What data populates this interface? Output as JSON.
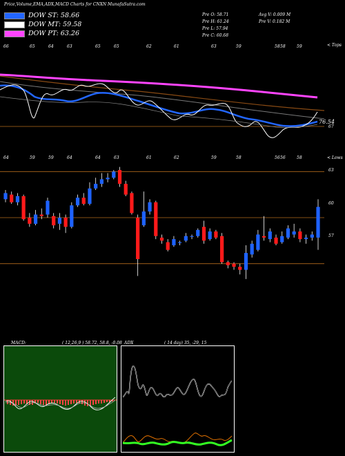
{
  "header": {
    "title": "Price,Volume,EMA,ADX,MACD Charts for CNXN",
    "site": "MunafaSutra.com",
    "legend": [
      {
        "label": "DOW ST: 58.66",
        "color": "#2266ff"
      },
      {
        "label": "DOW MT: 59.58",
        "color": "#ffffff"
      },
      {
        "label": "DOW PT: 63.26",
        "color": "#ff44ff"
      }
    ],
    "stats": {
      "prev": "Pre  O: 58.71",
      "high": "Pre  H: 61.24",
      "low": "Pre  L: 57.94",
      "close": "Pre  C: 60.68",
      "avgv": "Avg V: 0.009 M",
      "prev_v": "Pre  V: 0.182  M"
    }
  },
  "top_panel": {
    "label": "Price",
    "right_tag": "< Tops",
    "top_ticks": [
      "66",
      "65",
      "64",
      "63",
      "65",
      "65",
      "62",
      "61",
      "63",
      "59",
      "58",
      "58",
      "59"
    ],
    "price_labels": [
      "76.54",
      "67"
    ],
    "colors": {
      "dow_st": "#2266ff",
      "dow_pt": "#ff44ff",
      "guide": "#b36a1c"
    }
  },
  "candle_panel": {
    "right_tag": "< Lows",
    "top_ticks": [
      "64",
      "59",
      "59",
      "64",
      "64",
      "63",
      "61",
      "62",
      "59",
      "58",
      "56",
      "56",
      "58"
    ],
    "levels": [
      "63",
      "60",
      "57"
    ]
  },
  "macd": {
    "label": "MACD:",
    "params": "( 12,26,9 ) 58.72, 58.8, -0.08"
  },
  "adx": {
    "label": "ADX",
    "params": "( 14  day) 35,  -29,  15"
  },
  "chart_data": [
    {
      "type": "candlestick",
      "title": "Price,Volume,EMA,ADX,MACD Charts for CNXN",
      "ylabel": "Price",
      "ylim": [
        55.5,
        64.5
      ],
      "candles": [
        {
          "o": 61.2,
          "c": 61.6,
          "h": 61.8,
          "l": 61.0
        },
        {
          "o": 61.5,
          "c": 61.0,
          "h": 61.7,
          "l": 60.9
        },
        {
          "o": 61.0,
          "c": 61.4,
          "h": 61.6,
          "l": 60.8
        },
        {
          "o": 61.4,
          "c": 59.9,
          "h": 61.5,
          "l": 59.8
        },
        {
          "o": 60.0,
          "c": 59.6,
          "h": 60.3,
          "l": 59.4
        },
        {
          "o": 59.6,
          "c": 60.2,
          "h": 60.5,
          "l": 59.5
        },
        {
          "o": 60.2,
          "c": 60.1,
          "h": 60.6,
          "l": 59.9
        },
        {
          "o": 60.2,
          "c": 61.1,
          "h": 61.3,
          "l": 60.0
        },
        {
          "o": 60.1,
          "c": 59.5,
          "h": 60.3,
          "l": 59.3
        },
        {
          "o": 59.6,
          "c": 60.0,
          "h": 60.3,
          "l": 59.2
        },
        {
          "o": 60.0,
          "c": 59.4,
          "h": 60.2,
          "l": 59.0
        },
        {
          "o": 59.4,
          "c": 60.8,
          "h": 61.0,
          "l": 59.3
        },
        {
          "o": 60.8,
          "c": 61.3,
          "h": 61.5,
          "l": 60.7
        },
        {
          "o": 61.3,
          "c": 60.9,
          "h": 61.6,
          "l": 60.8
        },
        {
          "o": 60.9,
          "c": 61.9,
          "h": 62.3,
          "l": 60.8
        },
        {
          "o": 61.9,
          "c": 62.2,
          "h": 62.6,
          "l": 61.8
        },
        {
          "o": 62.2,
          "c": 62.5,
          "h": 62.9,
          "l": 62.0
        },
        {
          "o": 62.5,
          "c": 62.6,
          "h": 62.9,
          "l": 62.3
        },
        {
          "o": 62.6,
          "c": 63.0,
          "h": 63.1,
          "l": 62.5
        },
        {
          "o": 63.1,
          "c": 62.2,
          "h": 63.3,
          "l": 62.0
        },
        {
          "o": 62.2,
          "c": 61.5,
          "h": 62.4,
          "l": 61.4
        },
        {
          "o": 61.6,
          "c": 60.3,
          "h": 61.7,
          "l": 60.2
        },
        {
          "o": 60.0,
          "c": 57.3,
          "h": 60.2,
          "l": 56.2
        },
        {
          "o": 59.5,
          "c": 60.4,
          "h": 61.7,
          "l": 59.4
        },
        {
          "o": 60.4,
          "c": 61.0,
          "h": 61.2,
          "l": 60.2
        },
        {
          "o": 61.0,
          "c": 58.8,
          "h": 61.1,
          "l": 58.6
        },
        {
          "o": 58.7,
          "c": 58.5,
          "h": 58.9,
          "l": 58.3
        },
        {
          "o": 58.4,
          "c": 57.9,
          "h": 58.6,
          "l": 57.8
        },
        {
          "o": 58.2,
          "c": 58.6,
          "h": 58.8,
          "l": 58.1
        },
        {
          "o": 58.4,
          "c": 58.4,
          "h": 58.5,
          "l": 58.2
        },
        {
          "o": 58.5,
          "c": 58.8,
          "h": 59.0,
          "l": 58.4
        },
        {
          "o": 58.8,
          "c": 58.8,
          "h": 58.9,
          "l": 58.6
        },
        {
          "o": 58.8,
          "c": 59.2,
          "h": 59.3,
          "l": 58.7
        },
        {
          "o": 59.4,
          "c": 58.5,
          "h": 59.8,
          "l": 58.3
        },
        {
          "o": 58.6,
          "c": 59.1,
          "h": 59.3,
          "l": 58.5
        },
        {
          "o": 59.1,
          "c": 58.7,
          "h": 59.2,
          "l": 58.6
        },
        {
          "o": 58.8,
          "c": 57.1,
          "h": 59.0,
          "l": 57.0
        },
        {
          "o": 57.1,
          "c": 56.9,
          "h": 57.2,
          "l": 56.7
        },
        {
          "o": 57.0,
          "c": 56.8,
          "h": 57.1,
          "l": 56.6
        },
        {
          "o": 56.8,
          "c": 56.6,
          "h": 57.0,
          "l": 56.3
        },
        {
          "o": 56.6,
          "c": 57.7,
          "h": 58.2,
          "l": 56.0
        },
        {
          "o": 57.6,
          "c": 58.3,
          "h": 58.5,
          "l": 57.4
        },
        {
          "o": 57.9,
          "c": 58.9,
          "h": 59.2,
          "l": 57.8
        },
        {
          "o": 58.8,
          "c": 58.7,
          "h": 60.1,
          "l": 58.5
        },
        {
          "o": 58.6,
          "c": 59.1,
          "h": 59.3,
          "l": 58.4
        },
        {
          "o": 58.7,
          "c": 58.3,
          "h": 58.9,
          "l": 58.2
        },
        {
          "o": 58.4,
          "c": 58.8,
          "h": 59.1,
          "l": 58.3
        },
        {
          "o": 58.7,
          "c": 59.3,
          "h": 59.5,
          "l": 58.6
        },
        {
          "o": 58.9,
          "c": 59.1,
          "h": 59.6,
          "l": 58.7
        },
        {
          "o": 59.1,
          "c": 58.6,
          "h": 59.3,
          "l": 58.4
        },
        {
          "o": 58.6,
          "c": 58.7,
          "h": 58.9,
          "l": 58.3
        },
        {
          "o": 58.7,
          "c": 58.9,
          "h": 59.1,
          "l": 58.5
        },
        {
          "o": 58.7,
          "c": 60.7,
          "h": 61.2,
          "l": 57.9
        }
      ],
      "levels": [
        63,
        60,
        57
      ]
    }
  ]
}
